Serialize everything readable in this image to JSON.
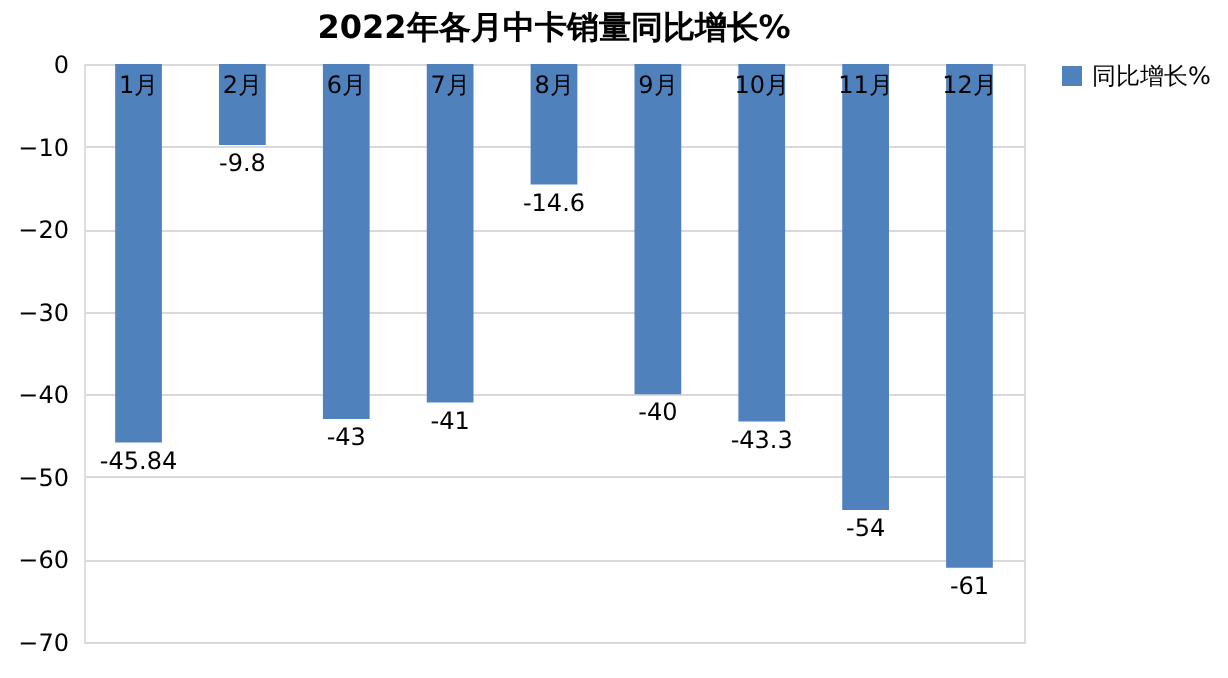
{
  "chart_data": {
    "type": "bar",
    "title": "2022年各月中卡销量同比增长%",
    "categories": [
      "1月",
      "2月",
      "6月",
      "7月",
      "8月",
      "9月",
      "10月",
      "11月",
      "12月"
    ],
    "series": [
      {
        "name": "同比增长%",
        "color": "#4f81bd",
        "values": [
          -45.84,
          -9.8,
          -43,
          -41,
          -14.6,
          -40,
          -43.3,
          -54,
          -61
        ]
      }
    ],
    "ylim": [
      -70,
      0
    ],
    "yticks": [
      -70,
      -60,
      -50,
      -40,
      -30,
      -20,
      -10,
      0
    ],
    "grid": "y",
    "legend": "right",
    "data_labels": true
  }
}
